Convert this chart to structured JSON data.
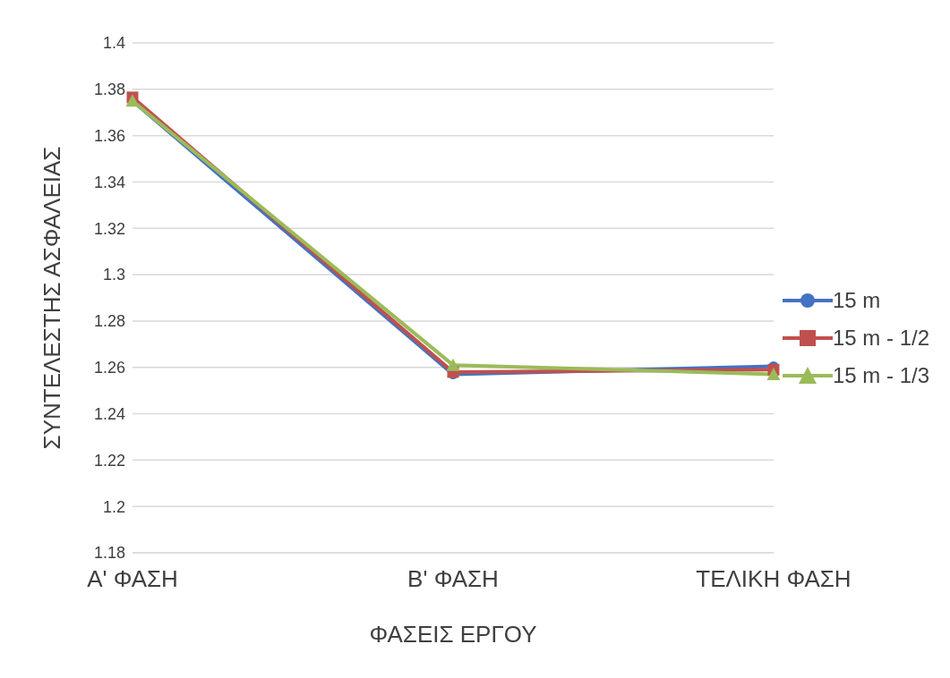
{
  "chart_data": {
    "type": "line",
    "xlabel": "ΦΑΣΕΙΣ ΕΡΓΟΥ",
    "ylabel": "ΣΥΝΤΕΛΕΣΤΗΣ ΑΣΦΑΛΕΙΑΣ",
    "categories": [
      "Α' ΦΑΣΗ",
      "Β' ΦΑΣΗ",
      "ΤΕΛΙΚΗ ΦΑΣΗ"
    ],
    "series": [
      {
        "name": "15 m",
        "color": "#4472c4",
        "marker": "circle",
        "values": [
          1.375,
          1.257,
          1.2605
        ]
      },
      {
        "name": "15 m - 1/2",
        "color": "#c0504d",
        "marker": "square",
        "values": [
          1.3765,
          1.258,
          1.259
        ]
      },
      {
        "name": "15 m - 1/3",
        "color": "#9bbb59",
        "marker": "triangle",
        "values": [
          1.375,
          1.261,
          1.257
        ]
      }
    ],
    "ylim": [
      1.18,
      1.4
    ],
    "yticks": [
      1.18,
      1.2,
      1.22,
      1.24,
      1.26,
      1.28,
      1.3,
      1.32,
      1.34,
      1.36,
      1.38,
      1.4
    ],
    "grid": "y",
    "legend": "right",
    "line_style": "solid"
  }
}
